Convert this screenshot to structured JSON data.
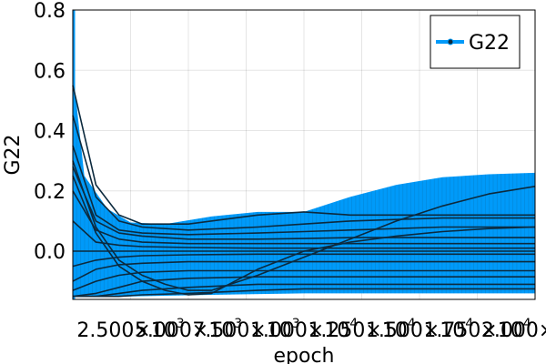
{
  "chart_data": {
    "type": "line",
    "title": "",
    "xlabel": "epoch",
    "ylabel": "G22",
    "xlim": [
      0,
      20000
    ],
    "ylim": [
      -0.16,
      0.8
    ],
    "grid": true,
    "legend": {
      "position": "top-right",
      "entries": [
        "G22"
      ]
    },
    "x_ticks": [
      {
        "value": 2500,
        "mantissa": "2.500",
        "exponent": "3"
      },
      {
        "value": 5000,
        "mantissa": "5.000",
        "exponent": "3"
      },
      {
        "value": 7500,
        "mantissa": "7.500",
        "exponent": "3"
      },
      {
        "value": 10000,
        "mantissa": "1.000",
        "exponent": "4"
      },
      {
        "value": 12500,
        "mantissa": "1.250",
        "exponent": "4"
      },
      {
        "value": 15000,
        "mantissa": "1.500",
        "exponent": "4"
      },
      {
        "value": 17500,
        "mantissa": "1.750",
        "exponent": "4"
      },
      {
        "value": 20000,
        "mantissa": "2.000",
        "exponent": "4"
      }
    ],
    "y_ticks": [
      {
        "value": 0.0,
        "label": "0.0"
      },
      {
        "value": 0.2,
        "label": "0.2"
      },
      {
        "value": 0.4,
        "label": "0.4"
      },
      {
        "value": 0.6,
        "label": "0.6"
      },
      {
        "value": 0.8,
        "label": "0.8"
      }
    ],
    "initial_spike_max": 0.8,
    "band_upper": [
      [
        0,
        0.6
      ],
      [
        500,
        0.25
      ],
      [
        1500,
        0.14
      ],
      [
        2500,
        0.095
      ],
      [
        4000,
        0.09
      ],
      [
        6000,
        0.115
      ],
      [
        8000,
        0.13
      ],
      [
        10000,
        0.13
      ],
      [
        12000,
        0.18
      ],
      [
        14000,
        0.22
      ],
      [
        16000,
        0.245
      ],
      [
        18000,
        0.255
      ],
      [
        20000,
        0.26
      ]
    ],
    "band_lower": [
      [
        0,
        -0.15
      ],
      [
        2500,
        -0.15
      ],
      [
        6000,
        -0.145
      ],
      [
        10000,
        -0.14
      ],
      [
        14000,
        -0.14
      ],
      [
        20000,
        -0.14
      ]
    ],
    "series_color": "#009af9",
    "dark_color": "#0c2a3e",
    "series": [
      {
        "x": [
          0,
          1000,
          2000,
          3000,
          5000,
          8000,
          10000,
          12000,
          14000,
          16000,
          18000,
          20000
        ],
        "y": [
          0.55,
          0.22,
          0.12,
          0.09,
          0.09,
          0.12,
          0.13,
          0.12,
          0.12,
          0.12,
          0.12,
          0.12
        ]
      },
      {
        "x": [
          0,
          1000,
          2000,
          3000,
          5000,
          8000,
          10000,
          12000,
          14000,
          16000,
          18000,
          20000
        ],
        "y": [
          0.45,
          0.18,
          0.1,
          0.08,
          0.07,
          0.08,
          0.09,
          0.1,
          0.105,
          0.11,
          0.11,
          0.11
        ]
      },
      {
        "x": [
          0,
          1000,
          2000,
          3000,
          5000,
          8000,
          10000,
          12000,
          14000,
          16000,
          18000,
          20000
        ],
        "y": [
          0.35,
          0.12,
          0.07,
          0.06,
          0.055,
          0.06,
          0.065,
          0.07,
          0.075,
          0.08,
          0.08,
          0.08
        ]
      },
      {
        "x": [
          0,
          1000,
          2000,
          3000,
          5000,
          8000,
          10000,
          12000,
          14000,
          16000,
          18000,
          20000
        ],
        "y": [
          0.28,
          0.1,
          0.06,
          0.05,
          0.04,
          0.04,
          0.042,
          0.045,
          0.045,
          0.045,
          0.045,
          0.045
        ]
      },
      {
        "x": [
          0,
          1000,
          2000,
          3000,
          5000,
          8000,
          10000,
          12000,
          14000,
          16000,
          18000,
          20000
        ],
        "y": [
          0.2,
          0.07,
          0.04,
          0.03,
          0.025,
          0.025,
          0.025,
          0.025,
          0.025,
          0.025,
          0.025,
          0.025
        ]
      },
      {
        "x": [
          0,
          1000,
          2000,
          3000,
          5000,
          8000,
          10000,
          12000,
          14000,
          16000,
          18000,
          20000
        ],
        "y": [
          0.1,
          0.03,
          0.02,
          0.015,
          0.012,
          0.01,
          0.01,
          0.01,
          0.01,
          0.01,
          0.01,
          0.01
        ]
      },
      {
        "x": [
          0,
          1000,
          2000,
          3000,
          5000,
          8000,
          10000,
          12000,
          14000,
          16000,
          18000,
          20000
        ],
        "y": [
          0.0,
          0.0,
          0.0,
          0.0,
          0.0,
          0.0,
          0.0,
          0.0,
          0.0,
          0.0,
          0.0,
          0.0
        ]
      },
      {
        "x": [
          0,
          1000,
          2000,
          3000,
          5000,
          8000,
          10000,
          12000,
          14000,
          16000,
          18000,
          20000
        ],
        "y": [
          -0.05,
          -0.03,
          -0.02,
          -0.015,
          -0.012,
          -0.01,
          -0.01,
          -0.01,
          -0.01,
          -0.01,
          -0.01,
          -0.01
        ]
      },
      {
        "x": [
          0,
          1000,
          2000,
          3000,
          5000,
          8000,
          10000,
          12000,
          14000,
          16000,
          18000,
          20000
        ],
        "y": [
          -0.1,
          -0.06,
          -0.045,
          -0.04,
          -0.035,
          -0.035,
          -0.035,
          -0.035,
          -0.035,
          -0.035,
          -0.035,
          -0.035
        ]
      },
      {
        "x": [
          0,
          1000,
          2000,
          3000,
          5000,
          8000,
          10000,
          12000,
          14000,
          16000,
          18000,
          20000
        ],
        "y": [
          -0.13,
          -0.1,
          -0.08,
          -0.07,
          -0.065,
          -0.065,
          -0.065,
          -0.065,
          -0.065,
          -0.065,
          -0.065,
          -0.065
        ]
      },
      {
        "x": [
          0,
          1000,
          2000,
          3000,
          5000,
          8000,
          10000,
          12000,
          14000,
          16000,
          18000,
          20000
        ],
        "y": [
          -0.15,
          -0.14,
          -0.12,
          -0.1,
          -0.09,
          -0.085,
          -0.085,
          -0.085,
          -0.085,
          -0.085,
          -0.085,
          -0.085
        ]
      },
      {
        "x": [
          0,
          1000,
          2000,
          3000,
          5000,
          8000,
          10000,
          12000,
          14000,
          16000,
          18000,
          20000
        ],
        "y": [
          -0.15,
          -0.15,
          -0.14,
          -0.13,
          -0.12,
          -0.11,
          -0.11,
          -0.11,
          -0.11,
          -0.11,
          -0.11,
          -0.11
        ]
      },
      {
        "x": [
          0,
          1000,
          2000,
          3000,
          5000,
          8000,
          10000,
          12000,
          14000,
          16000,
          18000,
          20000
        ],
        "y": [
          -0.15,
          -0.15,
          -0.15,
          -0.145,
          -0.14,
          -0.13,
          -0.125,
          -0.125,
          -0.125,
          -0.125,
          -0.125,
          -0.125
        ]
      },
      {
        "x": [
          0,
          1000,
          2000,
          3000,
          4000,
          5000,
          6000,
          8000,
          10000,
          12000,
          14000,
          16000,
          18000,
          20000
        ],
        "y": [
          0.3,
          0.08,
          -0.03,
          -0.08,
          -0.11,
          -0.13,
          -0.13,
          -0.08,
          -0.02,
          0.04,
          0.1,
          0.15,
          0.19,
          0.215
        ]
      },
      {
        "x": [
          0,
          1000,
          2000,
          3000,
          4000,
          5000,
          6000,
          8000,
          10000,
          12000,
          14000,
          16000,
          18000,
          20000
        ],
        "y": [
          0.25,
          0.06,
          -0.05,
          -0.1,
          -0.13,
          -0.145,
          -0.14,
          -0.06,
          0.0,
          0.03,
          0.05,
          0.065,
          0.075,
          0.08
        ]
      }
    ]
  }
}
